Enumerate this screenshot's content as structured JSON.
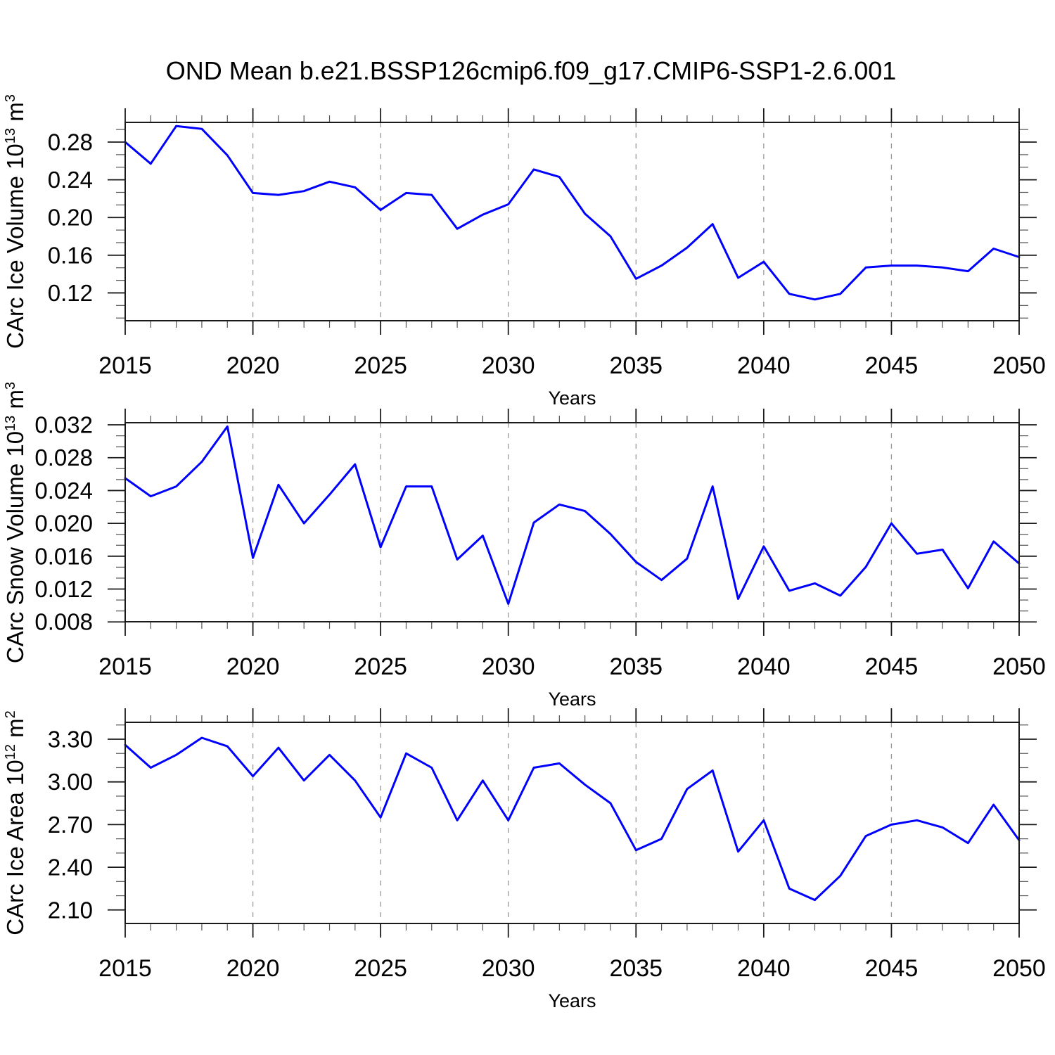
{
  "title": "OND Mean b.e21.BSSP126cmip6.f09_g17.CMIP6-SSP1-2.6.001",
  "colors": {
    "line": "#0000ff",
    "axis": "#1a1a1a",
    "grid": "#999999",
    "text": "#000000"
  },
  "years": [
    2015,
    2016,
    2017,
    2018,
    2019,
    2020,
    2021,
    2022,
    2023,
    2024,
    2025,
    2026,
    2027,
    2028,
    2029,
    2030,
    2031,
    2032,
    2033,
    2034,
    2035,
    2036,
    2037,
    2038,
    2039,
    2040,
    2041,
    2042,
    2043,
    2044,
    2045,
    2046,
    2047,
    2048,
    2049,
    2050
  ],
  "chart_data": [
    {
      "type": "line",
      "panel": "ice-volume",
      "ylabel": "CArc Ice Volume 10^13 m^3",
      "xlabel": "Years",
      "xlim": [
        2015,
        2050
      ],
      "ylim": [
        0.0905,
        0.3009
      ],
      "xticks": [
        2015,
        2020,
        2025,
        2030,
        2035,
        2040,
        2045,
        2050
      ],
      "xticklabels": [
        "2015",
        "2020",
        "2025",
        "2030",
        "2035",
        "2040",
        "2045",
        "2050"
      ],
      "yticks": [
        0.12,
        0.16,
        0.2,
        0.24,
        0.28
      ],
      "yticklabels": [
        "0.12",
        "0.16",
        "0.20",
        "0.24",
        "0.28"
      ],
      "grid_years": [
        2020,
        2025,
        2030,
        2035,
        2040,
        2045
      ],
      "values": [
        0.28,
        0.257,
        0.297,
        0.294,
        0.266,
        0.226,
        0.224,
        0.228,
        0.238,
        0.232,
        0.208,
        0.226,
        0.224,
        0.188,
        0.203,
        0.214,
        0.251,
        0.243,
        0.204,
        0.18,
        0.135,
        0.149,
        0.168,
        0.193,
        0.136,
        0.153,
        0.119,
        0.113,
        0.119,
        0.147,
        0.149,
        0.149,
        0.147,
        0.143,
        0.167,
        0.158
      ]
    },
    {
      "type": "line",
      "panel": "snow-volume",
      "ylabel": "CArc Snow Volume 10^13 m^3",
      "xlabel": "Years",
      "xlim": [
        2015,
        2050
      ],
      "ylim": [
        0.00802,
        0.03226
      ],
      "xticks": [
        2015,
        2020,
        2025,
        2030,
        2035,
        2040,
        2045,
        2050
      ],
      "xticklabels": [
        "2015",
        "2020",
        "2025",
        "2030",
        "2035",
        "2040",
        "2045",
        "2050"
      ],
      "yticks": [
        0.008,
        0.012,
        0.016,
        0.02,
        0.024,
        0.028,
        0.032
      ],
      "yticklabels": [
        "0.008",
        "0.012",
        "0.016",
        "0.020",
        "0.024",
        "0.028",
        "0.032"
      ],
      "grid_years": [
        2020,
        2025,
        2030,
        2035,
        2040,
        2045
      ],
      "values": [
        0.0255,
        0.0233,
        0.0245,
        0.0275,
        0.0318,
        0.0158,
        0.0247,
        0.02,
        0.0235,
        0.0272,
        0.0171,
        0.0245,
        0.0245,
        0.0156,
        0.0185,
        0.0102,
        0.0201,
        0.0223,
        0.0215,
        0.0187,
        0.0153,
        0.0131,
        0.0157,
        0.0245,
        0.0108,
        0.0172,
        0.0118,
        0.0127,
        0.0112,
        0.0147,
        0.02,
        0.0163,
        0.0168,
        0.0121,
        0.0178,
        0.0151
      ]
    },
    {
      "type": "line",
      "panel": "ice-area",
      "ylabel": "CArc Ice Area 10^12 m^2",
      "xlabel": "Years",
      "xlim": [
        2015,
        2050
      ],
      "ylim": [
        2.005,
        3.4186
      ],
      "xticks": [
        2015,
        2020,
        2025,
        2030,
        2035,
        2040,
        2045,
        2050
      ],
      "xticklabels": [
        "2015",
        "2020",
        "2025",
        "2030",
        "2035",
        "2040",
        "2045",
        "2050"
      ],
      "yticks": [
        2.1,
        2.4,
        2.7,
        3.0,
        3.3
      ],
      "yticklabels": [
        "2.10",
        "2.40",
        "2.70",
        "3.00",
        "3.30"
      ],
      "grid_years": [
        2020,
        2025,
        2030,
        2035,
        2040,
        2045
      ],
      "values": [
        3.26,
        3.1,
        3.19,
        3.31,
        3.25,
        3.04,
        3.24,
        3.01,
        3.19,
        3.01,
        2.75,
        3.2,
        3.1,
        2.73,
        3.01,
        2.73,
        3.1,
        3.13,
        2.98,
        2.85,
        2.52,
        2.6,
        2.95,
        3.08,
        2.51,
        2.73,
        2.25,
        2.17,
        2.34,
        2.62,
        2.7,
        2.73,
        2.68,
        2.57,
        2.84,
        2.59
      ]
    }
  ]
}
